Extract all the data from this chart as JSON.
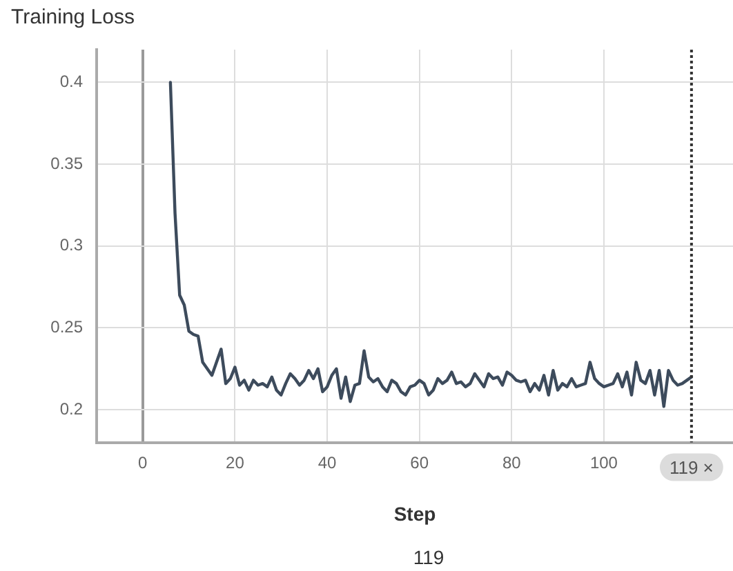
{
  "chart_data": {
    "type": "line",
    "title": "Training Loss",
    "xlabel": "Step",
    "x": [
      6,
      7,
      8,
      9,
      10,
      11,
      12,
      13,
      14,
      15,
      16,
      17,
      18,
      19,
      20,
      21,
      22,
      23,
      24,
      25,
      26,
      27,
      28,
      29,
      30,
      31,
      32,
      33,
      34,
      35,
      36,
      37,
      38,
      39,
      40,
      41,
      42,
      43,
      44,
      45,
      46,
      47,
      48,
      49,
      50,
      51,
      52,
      53,
      54,
      55,
      56,
      57,
      58,
      59,
      60,
      61,
      62,
      63,
      64,
      65,
      66,
      67,
      68,
      69,
      70,
      71,
      72,
      73,
      74,
      75,
      76,
      77,
      78,
      79,
      80,
      81,
      82,
      83,
      84,
      85,
      86,
      87,
      88,
      89,
      90,
      91,
      92,
      93,
      94,
      95,
      96,
      97,
      98,
      99,
      100,
      101,
      102,
      103,
      104,
      105,
      106,
      107,
      108,
      109,
      110,
      111,
      112,
      113,
      114,
      115,
      116,
      117,
      118,
      119
    ],
    "series": [
      {
        "color": "#3d4b5c",
        "values": [
          0.4,
          0.32,
          0.27,
          0.264,
          0.248,
          0.246,
          0.245,
          0.229,
          0.225,
          0.221,
          0.229,
          0.237,
          0.216,
          0.219,
          0.226,
          0.215,
          0.218,
          0.212,
          0.218,
          0.215,
          0.216,
          0.214,
          0.22,
          0.212,
          0.209,
          0.216,
          0.222,
          0.219,
          0.215,
          0.218,
          0.224,
          0.219,
          0.225,
          0.211,
          0.214,
          0.221,
          0.225,
          0.207,
          0.22,
          0.205,
          0.215,
          0.216,
          0.236,
          0.22,
          0.217,
          0.219,
          0.214,
          0.211,
          0.218,
          0.216,
          0.211,
          0.209,
          0.214,
          0.215,
          0.218,
          0.216,
          0.209,
          0.212,
          0.219,
          0.216,
          0.218,
          0.223,
          0.216,
          0.217,
          0.214,
          0.216,
          0.222,
          0.218,
          0.214,
          0.222,
          0.219,
          0.22,
          0.215,
          0.223,
          0.221,
          0.218,
          0.217,
          0.218,
          0.211,
          0.216,
          0.212,
          0.221,
          0.209,
          0.224,
          0.212,
          0.216,
          0.214,
          0.219,
          0.214,
          0.215,
          0.216,
          0.229,
          0.219,
          0.216,
          0.214,
          0.215,
          0.216,
          0.222,
          0.214,
          0.223,
          0.209,
          0.229,
          0.218,
          0.216,
          0.224,
          0.209,
          0.224,
          0.202,
          0.224,
          0.218,
          0.215,
          0.216,
          0.218,
          0.22
        ]
      }
    ],
    "xlim": [
      -10,
      128
    ],
    "xticks": [
      0,
      20,
      40,
      60,
      80,
      100
    ],
    "ylim": [
      0.18,
      0.42
    ],
    "yticks": [
      0.2,
      0.25,
      0.3,
      0.35,
      0.4
    ],
    "grid": true,
    "legend": false,
    "marker": "none",
    "line_style": "solid",
    "ref_lines": [
      {
        "axis": "x",
        "value": 119,
        "label": "119 ×",
        "line_style": "dotted",
        "color": "#333333"
      }
    ],
    "annotations": [
      "119"
    ]
  }
}
